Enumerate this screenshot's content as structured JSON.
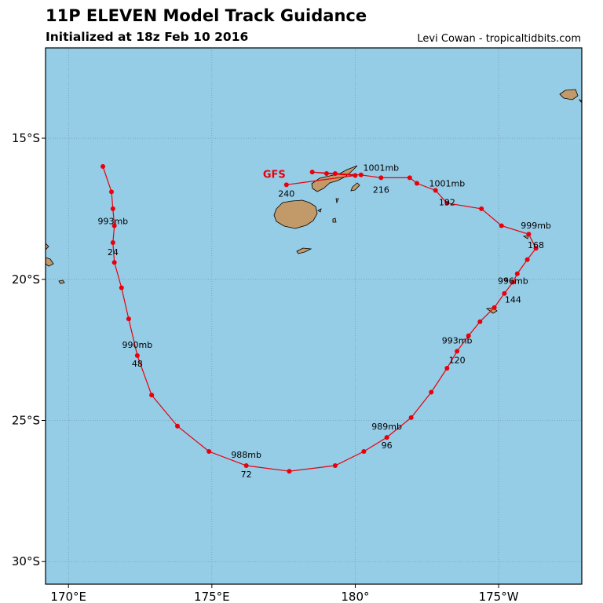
{
  "header": {
    "title": "11P ELEVEN Model Track Guidance",
    "subtitle": "Initialized at 18z Feb 10 2016",
    "credit": "Levi Cowan - tropicaltidbits.com"
  },
  "colors": {
    "ocean": "#95cce6",
    "land": "#c29a6a",
    "coastline": "#000000",
    "track": "#e8000b",
    "gridline": "#6a8f9a"
  },
  "map": {
    "lon_range": [
      169.2,
      187.9
    ],
    "lat_range": [
      -30.8,
      -11.8
    ],
    "x_ticks": [
      {
        "lon": 170,
        "label": "170°E"
      },
      {
        "lon": 175,
        "label": "175°E"
      },
      {
        "lon": 180,
        "label": "180°"
      },
      {
        "lon": 185,
        "label": "175°W"
      }
    ],
    "y_ticks": [
      {
        "lat": -15,
        "label": "15°S"
      },
      {
        "lat": -20,
        "label": "20°S"
      },
      {
        "lat": -25,
        "label": "25°S"
      },
      {
        "lat": -30,
        "label": "30°S"
      }
    ]
  },
  "track": {
    "model": "GFS",
    "points": [
      [
        171.2,
        -16.0
      ],
      [
        171.5,
        -16.9
      ],
      [
        171.55,
        -17.5
      ],
      [
        171.6,
        -18.1
      ],
      [
        171.55,
        -18.7
      ],
      [
        171.6,
        -19.4
      ],
      [
        171.85,
        -20.3
      ],
      [
        172.1,
        -21.4
      ],
      [
        172.4,
        -22.7
      ],
      [
        172.9,
        -24.1
      ],
      [
        173.8,
        -25.2
      ],
      [
        174.9,
        -26.1
      ],
      [
        176.2,
        -26.6
      ],
      [
        177.7,
        -26.8
      ],
      [
        179.3,
        -26.6
      ],
      [
        180.3,
        -26.1
      ],
      [
        181.1,
        -25.6
      ],
      [
        181.95,
        -24.9
      ],
      [
        182.65,
        -24.0
      ],
      [
        183.2,
        -23.15
      ],
      [
        183.55,
        -22.55
      ],
      [
        183.95,
        -22.0
      ],
      [
        184.35,
        -21.5
      ],
      [
        184.85,
        -21.0
      ],
      [
        185.2,
        -20.5
      ],
      [
        185.5,
        -20.1
      ],
      [
        185.65,
        -19.8
      ],
      [
        186.0,
        -19.3
      ],
      [
        186.3,
        -18.9
      ],
      [
        186.05,
        -18.4
      ],
      [
        185.1,
        -18.1
      ],
      [
        184.4,
        -17.5
      ],
      [
        183.2,
        -17.3
      ],
      [
        182.8,
        -16.85
      ],
      [
        182.15,
        -16.6
      ],
      [
        181.9,
        -16.4
      ],
      [
        180.9,
        -16.4
      ],
      [
        180.2,
        -16.3
      ],
      [
        179.3,
        -16.25
      ],
      [
        178.5,
        -16.2
      ],
      [
        179.0,
        -16.25
      ],
      [
        180.0,
        -16.32
      ],
      [
        177.6,
        -16.65
      ]
    ],
    "labels": [
      {
        "text": "993mb",
        "lon": 171.55,
        "lat": -18.3,
        "dy": -9
      },
      {
        "text": "24",
        "lon": 171.55,
        "lat": -18.7,
        "dy": 16
      },
      {
        "text": "990mb",
        "lon": 172.4,
        "lat": -22.7,
        "dy": -10
      },
      {
        "text": "48",
        "lon": 172.4,
        "lat": -22.7,
        "dy": 14
      },
      {
        "text": "988mb",
        "lon": 176.2,
        "lat": -26.6,
        "dy": -10
      },
      {
        "text": "72",
        "lon": 176.2,
        "lat": -26.6,
        "dy": 15
      },
      {
        "text": "989mb",
        "lon": 181.1,
        "lat": -25.6,
        "dy": -10
      },
      {
        "text": "96",
        "lon": 181.1,
        "lat": -25.6,
        "dy": 14
      },
      {
        "text": "993mb",
        "lon": 183.55,
        "lat": -22.55,
        "dy": -10
      },
      {
        "text": "120",
        "lon": 183.55,
        "lat": -22.55,
        "dy": 15
      },
      {
        "text": "996mb",
        "lon": 185.5,
        "lat": -20.1,
        "dy": 2
      },
      {
        "text": "144",
        "lon": 185.5,
        "lat": -20.1,
        "dy": 26
      },
      {
        "text": "999mb",
        "lon": 186.3,
        "lat": -18.9,
        "dy": -25
      },
      {
        "text": "168",
        "lon": 186.3,
        "lat": -18.9,
        "dy": 0
      },
      {
        "text": "1001mb",
        "lon": 183.2,
        "lat": -17.3,
        "dy": -21
      },
      {
        "text": "192",
        "lon": 183.2,
        "lat": -17.3,
        "dy": 3
      },
      {
        "text": "1001mb",
        "lon": 180.9,
        "lat": -16.4,
        "dy": -9
      },
      {
        "text": "216",
        "lon": 180.9,
        "lat": -16.4,
        "dy": 19
      },
      {
        "text": "240",
        "lon": 177.6,
        "lat": -16.65,
        "dy": 15
      }
    ],
    "model_label_at": [
      177.6,
      -16.65
    ]
  }
}
